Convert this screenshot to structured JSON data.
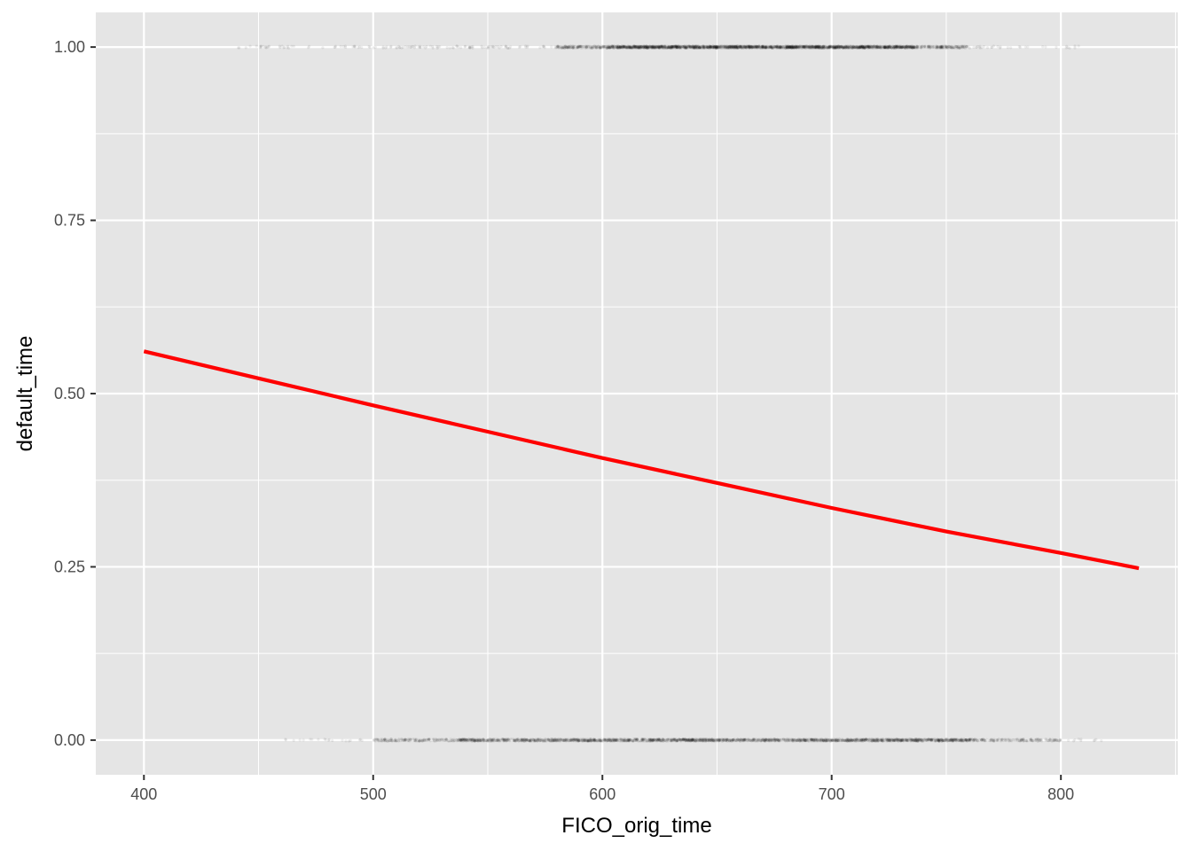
{
  "chart_data": {
    "type": "scatter",
    "title": "",
    "xlabel": "FICO_orig_time",
    "ylabel": "default_time",
    "xlim": [
      379,
      851
    ],
    "ylim": [
      -0.05,
      1.05
    ],
    "x_ticks": [
      400,
      500,
      600,
      700,
      800
    ],
    "x_tick_labels": [
      "400",
      "500",
      "600",
      "700",
      "800"
    ],
    "y_ticks": [
      0,
      0.25,
      0.5,
      0.75,
      1.0
    ],
    "y_tick_labels": [
      "0.00",
      "0.25",
      "0.50",
      "0.75",
      "1.00"
    ],
    "grid": true,
    "legend": "none",
    "colors": {
      "panel": "#e5e5e5",
      "grid": "#ffffff",
      "points": "#000000",
      "fit_line": "#ff0000"
    },
    "series": [
      {
        "kind": "points",
        "y_levels": [
          0,
          1
        ],
        "density": [
          {
            "y": 0,
            "x_range": [
              460,
              820
            ],
            "dense_range": [
              500,
              800
            ]
          },
          {
            "y": 1,
            "x_range": [
              440,
              810
            ],
            "dense_range": [
              580,
              760
            ]
          }
        ]
      },
      {
        "kind": "fit_line",
        "x": [
          400,
          450,
          500,
          550,
          600,
          650,
          700,
          750,
          800,
          834
        ],
        "y": [
          0.561,
          0.522,
          0.483,
          0.445,
          0.407,
          0.371,
          0.335,
          0.301,
          0.27,
          0.248
        ]
      }
    ]
  }
}
